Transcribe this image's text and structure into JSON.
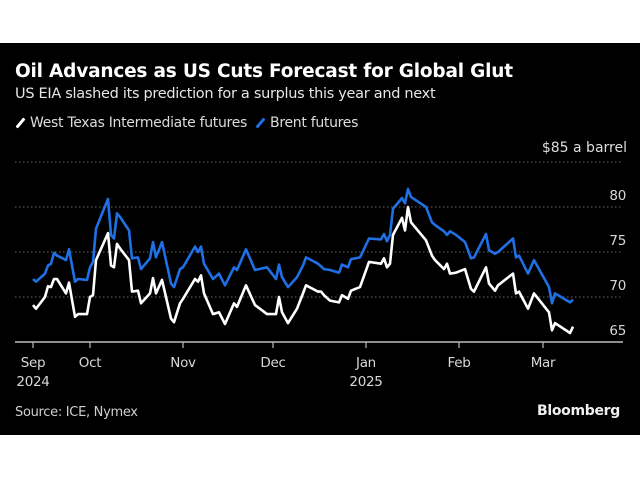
{
  "colors": {
    "background": "#000000",
    "wti": "#ffffff",
    "brent": "#1f6fe5",
    "grid": "#6a6a6a"
  },
  "chart_data": {
    "type": "line",
    "title": "Oil Advances as US Cuts Forecast for Global Glut",
    "subtitle": "US EIA slashed its prediction for a surplus this year and next",
    "unit_label": "$85 a barrel",
    "source": "Source: ICE, Nymex",
    "brand": "Bloomberg",
    "legend_placement": "top-left",
    "grid": true,
    "ylim": [
      65,
      85
    ],
    "yticks": [
      85,
      80,
      75,
      70,
      65
    ],
    "ytick_labels": [
      "",
      "80",
      "75",
      "70",
      "65"
    ],
    "xticks": [
      {
        "date": "2024-09-12",
        "label": "Sep",
        "sublabel": "2024"
      },
      {
        "date": "2024-10-01",
        "label": "Oct",
        "sublabel": ""
      },
      {
        "date": "2024-11-01",
        "label": "Nov",
        "sublabel": ""
      },
      {
        "date": "2024-12-01",
        "label": "Dec",
        "sublabel": ""
      },
      {
        "date": "2025-01-01",
        "label": "Jan",
        "sublabel": "2025"
      },
      {
        "date": "2025-02-01",
        "label": "Feb",
        "sublabel": ""
      },
      {
        "date": "2025-03-01",
        "label": "Mar",
        "sublabel": ""
      }
    ],
    "x": [
      "2024-09-12",
      "2024-09-13",
      "2024-09-16",
      "2024-09-17",
      "2024-09-18",
      "2024-09-19",
      "2024-09-20",
      "2024-09-23",
      "2024-09-24",
      "2024-09-26",
      "2024-09-27",
      "2024-09-30",
      "2024-10-01",
      "2024-10-02",
      "2024-10-03",
      "2024-10-07",
      "2024-10-08",
      "2024-10-09",
      "2024-10-10",
      "2024-10-11",
      "2024-10-14",
      "2024-10-15",
      "2024-10-17",
      "2024-10-18",
      "2024-10-21",
      "2024-10-22",
      "2024-10-23",
      "2024-10-25",
      "2024-10-28",
      "2024-10-29",
      "2024-10-31",
      "2024-11-01",
      "2024-11-05",
      "2024-11-06",
      "2024-11-07",
      "2024-11-08",
      "2024-11-11",
      "2024-11-13",
      "2024-11-15",
      "2024-11-18",
      "2024-11-19",
      "2024-11-22",
      "2024-11-25",
      "2024-11-29",
      "2024-12-02",
      "2024-12-03",
      "2024-12-04",
      "2024-12-06",
      "2024-12-09",
      "2024-12-11",
      "2024-12-12",
      "2024-12-16",
      "2024-12-17",
      "2024-12-18",
      "2024-12-20",
      "2024-12-23",
      "2024-12-24",
      "2024-12-26",
      "2024-12-27",
      "2024-12-30",
      "2025-01-02",
      "2025-01-06",
      "2025-01-07",
      "2025-01-08",
      "2025-01-09",
      "2025-01-10",
      "2025-01-13",
      "2025-01-14",
      "2025-01-15",
      "2025-01-16",
      "2025-01-21",
      "2025-01-23",
      "2025-01-24",
      "2025-01-27",
      "2025-01-28",
      "2025-01-29",
      "2025-01-31",
      "2025-02-03",
      "2025-02-05",
      "2025-02-06",
      "2025-02-10",
      "2025-02-11",
      "2025-02-13",
      "2025-02-14",
      "2025-02-19",
      "2025-02-20",
      "2025-02-21",
      "2025-02-24",
      "2025-02-26",
      "2025-03-03",
      "2025-03-04",
      "2025-03-05",
      "2025-03-10",
      "2025-03-11"
    ],
    "series": [
      {
        "name": "West Texas Intermediate futures",
        "color": "#ffffff",
        "values": [
          69.1,
          68.7,
          70.0,
          71.2,
          71.1,
          72.0,
          72.0,
          70.4,
          71.6,
          67.8,
          68.1,
          68.1,
          70.0,
          70.2,
          74.1,
          77.1,
          73.5,
          73.3,
          75.9,
          75.4,
          74.1,
          70.6,
          70.7,
          69.3,
          70.4,
          72.1,
          70.4,
          71.9,
          67.6,
          67.2,
          69.3,
          69.8,
          72.0,
          71.7,
          72.4,
          70.4,
          68.1,
          68.3,
          67.0,
          69.3,
          68.9,
          71.3,
          69.1,
          68.1,
          68.1,
          70.0,
          68.3,
          67.1,
          68.7,
          70.4,
          71.3,
          70.6,
          70.6,
          70.2,
          69.6,
          69.4,
          70.2,
          69.8,
          70.7,
          71.1,
          73.9,
          73.7,
          74.3,
          73.3,
          73.7,
          76.9,
          78.8,
          77.4,
          80.0,
          78.3,
          76.3,
          74.6,
          74.1,
          73.1,
          73.7,
          72.6,
          72.7,
          73.1,
          70.9,
          70.6,
          73.3,
          71.5,
          70.7,
          71.3,
          72.6,
          70.4,
          70.6,
          68.7,
          70.4,
          68.3,
          66.3,
          67.1,
          66.0,
          66.7
        ]
      },
      {
        "name": "Brent futures",
        "color": "#1f6fe5",
        "values": [
          72.0,
          71.7,
          72.6,
          73.5,
          73.7,
          74.9,
          74.6,
          74.1,
          75.3,
          71.7,
          72.0,
          71.9,
          73.3,
          73.9,
          77.6,
          80.9,
          76.9,
          76.5,
          79.3,
          78.9,
          77.4,
          74.3,
          74.4,
          73.1,
          74.3,
          76.1,
          74.4,
          76.1,
          71.5,
          71.1,
          73.1,
          73.3,
          75.6,
          75.0,
          75.6,
          73.7,
          72.0,
          72.6,
          71.3,
          73.3,
          73.0,
          75.3,
          73.0,
          73.3,
          72.0,
          73.6,
          72.2,
          71.1,
          72.2,
          73.5,
          74.4,
          73.7,
          73.4,
          73.1,
          73.0,
          72.7,
          73.6,
          73.3,
          74.2,
          74.4,
          76.5,
          76.4,
          77.0,
          76.2,
          76.9,
          79.8,
          81.0,
          80.4,
          82.0,
          81.1,
          80.0,
          78.3,
          78.0,
          77.3,
          76.9,
          77.3,
          76.9,
          76.1,
          74.3,
          74.4,
          77.0,
          75.2,
          74.8,
          75.0,
          76.5,
          74.4,
          74.6,
          72.6,
          74.1,
          71.1,
          69.3,
          70.4,
          69.4,
          69.7
        ]
      }
    ]
  }
}
